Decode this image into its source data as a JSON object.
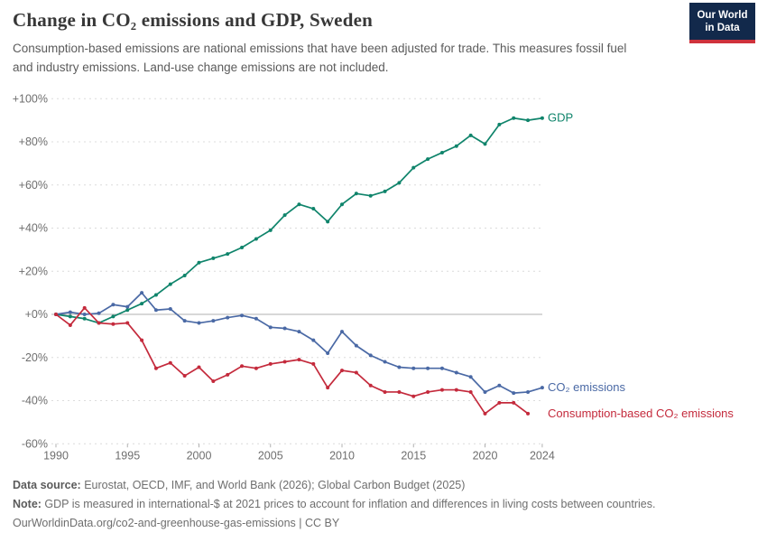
{
  "header": {
    "title": "Change in CO₂ emissions and GDP, Sweden",
    "subtitle": "Consumption-based emissions are national emissions that have been adjusted for trade. This measures fossil fuel and industry emissions. Land-use change emissions are not included."
  },
  "logo": {
    "line1": "Our World",
    "line2": "in Data"
  },
  "chart_data": {
    "type": "line",
    "title": "Change in CO₂ emissions and GDP, Sweden",
    "xlabel": "",
    "ylabel": "",
    "ylim": [
      -60,
      100
    ],
    "grid": "dashed horizontal",
    "legend_position": "line-end-labels",
    "x": [
      1990,
      1991,
      1992,
      1993,
      1994,
      1995,
      1996,
      1997,
      1998,
      1999,
      2000,
      2001,
      2002,
      2003,
      2004,
      2005,
      2006,
      2007,
      2008,
      2009,
      2010,
      2011,
      2012,
      2013,
      2014,
      2015,
      2016,
      2017,
      2018,
      2019,
      2020,
      2021,
      2022,
      2023,
      2024
    ],
    "y_ticks": [
      {
        "v": 100,
        "label": "+100%"
      },
      {
        "v": 80,
        "label": "+80%"
      },
      {
        "v": 60,
        "label": "+60%"
      },
      {
        "v": 40,
        "label": "+40%"
      },
      {
        "v": 20,
        "label": "+20%"
      },
      {
        "v": 0,
        "label": "+0%"
      },
      {
        "v": -20,
        "label": "-20%"
      },
      {
        "v": -40,
        "label": "-40%"
      },
      {
        "v": -60,
        "label": "-60%"
      }
    ],
    "x_ticks": [
      {
        "v": 1990,
        "label": "1990"
      },
      {
        "v": 1995,
        "label": "1995"
      },
      {
        "v": 2000,
        "label": "2000"
      },
      {
        "v": 2005,
        "label": "2005"
      },
      {
        "v": 2010,
        "label": "2010"
      },
      {
        "v": 2015,
        "label": "2015"
      },
      {
        "v": 2020,
        "label": "2020"
      },
      {
        "v": 2024,
        "label": "2024"
      }
    ],
    "series": [
      {
        "name": "GDP",
        "end_label": "GDP",
        "color": "#0f846b",
        "values": [
          0,
          -1,
          -2,
          -4,
          -1,
          2,
          5,
          9,
          14,
          18,
          24,
          26,
          28,
          31,
          35,
          39,
          46,
          51,
          49,
          43,
          51,
          56,
          55,
          57,
          61,
          68,
          72,
          75,
          78,
          83,
          79,
          88,
          91,
          90,
          91
        ]
      },
      {
        "name": "CO₂ emissions",
        "end_label": "CO₂ emissions",
        "color": "#4a69a5",
        "values": [
          0,
          1,
          0,
          0.5,
          4.5,
          3.5,
          10,
          2,
          2.5,
          -3,
          -4,
          -3,
          -1.5,
          -0.5,
          -2,
          -6,
          -6.5,
          -8,
          -12,
          -18,
          -8,
          -14.5,
          -19,
          -22,
          -24.5,
          -25,
          -25,
          -25,
          -27,
          -29,
          -36,
          -33,
          -36.5,
          -36,
          -34
        ]
      },
      {
        "name": "Consumption-based CO₂ emissions",
        "end_label": "Consumption-based CO₂ emissions",
        "color": "#c42a3c",
        "values": [
          0,
          -5,
          3,
          -4,
          -4.5,
          -4,
          -12,
          -25,
          -22.5,
          -28.5,
          -24.5,
          -31,
          -28,
          -24,
          -25,
          -23,
          -22,
          -21,
          -23,
          -34,
          -26,
          -27,
          -33,
          -36,
          -36,
          -38,
          -36,
          -35,
          -35,
          -36,
          -46,
          -41,
          -41,
          -46
        ]
      }
    ],
    "colors": {
      "gridline": "#dcdcdc",
      "zero_line": "#b0b0b0",
      "axis_text": "#6e6e6e",
      "tick_mark": "#b0b0b0"
    }
  },
  "footer": {
    "datasource_label": "Data source:",
    "datasource_text": " Eurostat, OECD, IMF, and World Bank (2026); Global Carbon Budget (2025)",
    "note_label": "Note:",
    "note_text": " GDP is measured in international-$ at 2021 prices to account for inflation and differences in living costs between countries.",
    "link": "OurWorldinData.org/co2-and-greenhouse-gas-emissions | CC BY"
  }
}
